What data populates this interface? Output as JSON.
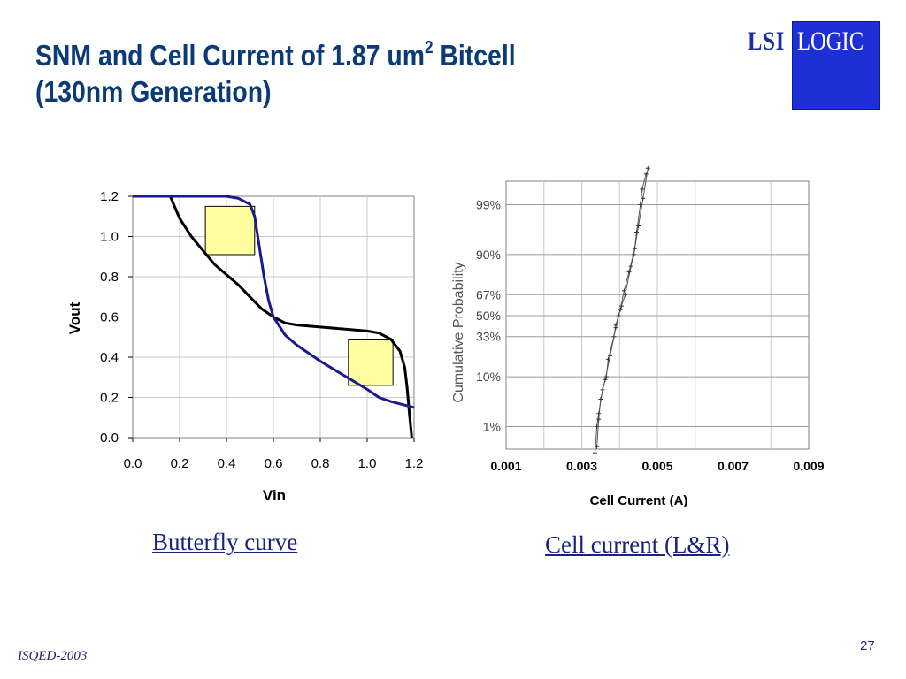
{
  "slide": {
    "title_line1_pre": "SNM and Cell Current of 1.87 um",
    "title_sup": "2",
    "title_line1_post": " Bitcell",
    "title_line2": "(130nm Generation)",
    "logo_left": "LSI",
    "logo_right": "LOGIC",
    "caption_left": "Butterfly curve",
    "caption_right": "Cell current (L&R)",
    "footer": "ISQED-2003",
    "page_number": "27"
  },
  "colors": {
    "title": "#0a3a78",
    "caption": "#1a237e",
    "curve_black": "#000000",
    "curve_blue": "#1a1a8c",
    "snm_box": "#ffffa0",
    "logo_blue": "#1f2fd6"
  },
  "chart_data": [
    {
      "type": "line",
      "xlabel": "Vin",
      "ylabel": "Vout",
      "xlim": [
        0.0,
        1.2
      ],
      "ylim": [
        0.0,
        1.2
      ],
      "x_ticks": [
        "0.0",
        "0.2",
        "0.4",
        "0.6",
        "0.8",
        "1.0",
        "1.2"
      ],
      "y_ticks": [
        "0.0",
        "0.2",
        "0.4",
        "0.6",
        "0.8",
        "1.0",
        "1.2"
      ],
      "grid": true,
      "series": [
        {
          "color": "#000000",
          "points": [
            [
              0.16,
              1.2
            ],
            [
              0.2,
              1.09
            ],
            [
              0.25,
              1.0
            ],
            [
              0.3,
              0.93
            ],
            [
              0.35,
              0.86
            ],
            [
              0.4,
              0.81
            ],
            [
              0.45,
              0.76
            ],
            [
              0.5,
              0.7
            ],
            [
              0.55,
              0.64
            ],
            [
              0.6,
              0.6
            ],
            [
              0.65,
              0.57
            ],
            [
              0.7,
              0.56
            ],
            [
              0.8,
              0.55
            ],
            [
              0.9,
              0.54
            ],
            [
              1.0,
              0.53
            ],
            [
              1.05,
              0.52
            ],
            [
              1.1,
              0.49
            ],
            [
              1.14,
              0.43
            ],
            [
              1.16,
              0.35
            ],
            [
              1.17,
              0.25
            ],
            [
              1.18,
              0.12
            ],
            [
              1.19,
              0.0
            ]
          ]
        },
        {
          "color": "#1a1a8c",
          "points": [
            [
              0.0,
              1.2
            ],
            [
              0.2,
              1.2
            ],
            [
              0.3,
              1.2
            ],
            [
              0.4,
              1.2
            ],
            [
              0.45,
              1.19
            ],
            [
              0.5,
              1.16
            ],
            [
              0.52,
              1.1
            ],
            [
              0.54,
              0.95
            ],
            [
              0.56,
              0.8
            ],
            [
              0.58,
              0.68
            ],
            [
              0.6,
              0.6
            ],
            [
              0.65,
              0.51
            ],
            [
              0.7,
              0.46
            ],
            [
              0.8,
              0.38
            ],
            [
              0.9,
              0.31
            ],
            [
              1.0,
              0.24
            ],
            [
              1.05,
              0.2
            ],
            [
              1.1,
              0.18
            ],
            [
              1.2,
              0.15
            ]
          ]
        }
      ],
      "snm_boxes": [
        {
          "x0": 0.31,
          "x1": 0.52,
          "y0": 0.91,
          "y1": 1.15
        },
        {
          "x0": 0.92,
          "x1": 1.11,
          "y0": 0.26,
          "y1": 0.49
        }
      ]
    },
    {
      "type": "scatter",
      "xlabel": "Cell Current (A)",
      "ylabel": "Cumulative Probability",
      "xlim": [
        0.001,
        0.009
      ],
      "x_ticks": [
        "0.001",
        "0.003",
        "0.005",
        "0.007",
        "0.009"
      ],
      "y_scale": "normal-probability",
      "y_ticks": [
        "1%",
        "10%",
        "33%",
        "50%",
        "67%",
        "90%",
        "99%"
      ],
      "grid": true,
      "series": [
        {
          "color": "#555555",
          "points": [
            [
              0.00335,
              0.2
            ],
            [
              0.0034,
              1
            ],
            [
              0.00345,
              2
            ],
            [
              0.00355,
              6
            ],
            [
              0.00365,
              10
            ],
            [
              0.0037,
              18
            ],
            [
              0.00385,
              33
            ],
            [
              0.0039,
              42
            ],
            [
              0.00397,
              50
            ],
            [
              0.00405,
              58
            ],
            [
              0.00415,
              67
            ],
            [
              0.0043,
              85
            ],
            [
              0.00438,
              90
            ],
            [
              0.00445,
              96
            ],
            [
              0.00455,
              99
            ],
            [
              0.0046,
              99.6
            ],
            [
              0.0047,
              99.85
            ]
          ]
        },
        {
          "color": "#555555",
          "points": [
            [
              0.0034,
              0.3
            ],
            [
              0.00345,
              1.5
            ],
            [
              0.0035,
              4
            ],
            [
              0.00362,
              9
            ],
            [
              0.00375,
              20
            ],
            [
              0.0039,
              40
            ],
            [
              0.00402,
              55
            ],
            [
              0.00412,
              70
            ],
            [
              0.00425,
              82
            ],
            [
              0.0044,
              92
            ],
            [
              0.0045,
              97
            ],
            [
              0.00462,
              99.3
            ],
            [
              0.00475,
              99.9
            ]
          ]
        }
      ]
    }
  ]
}
